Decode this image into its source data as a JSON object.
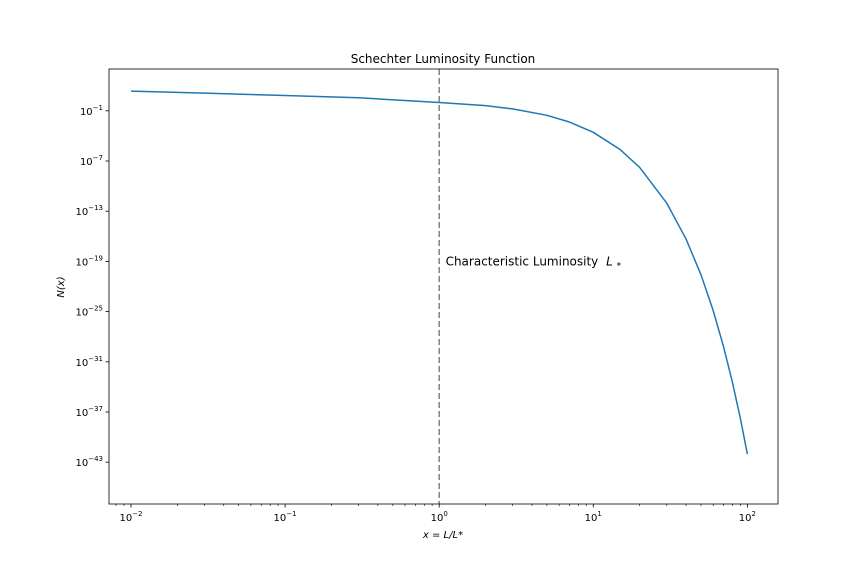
{
  "chart_data": {
    "type": "line",
    "title": "Schechter Luminosity Function",
    "xlabel": "x = L/L*",
    "ylabel": "N(x)",
    "xscale": "log",
    "yscale": "log",
    "xlim": [
      0.0072,
      158
    ],
    "ylim": [
      1e-48,
      10000.0
    ],
    "grid": false,
    "colors": {
      "line": "#1f77b4",
      "vline": "#808080"
    },
    "x_ticks": [
      {
        "base": "10",
        "exp": "−2",
        "value": 0.01
      },
      {
        "base": "10",
        "exp": "−1",
        "value": 0.1
      },
      {
        "base": "10",
        "exp": "0",
        "value": 1
      },
      {
        "base": "10",
        "exp": "1",
        "value": 10
      },
      {
        "base": "10",
        "exp": "2",
        "value": 100
      }
    ],
    "y_ticks": [
      {
        "base": "10",
        "exp": "−1",
        "value": 0.1
      },
      {
        "base": "10",
        "exp": "−7",
        "value": 1e-07
      },
      {
        "base": "10",
        "exp": "−13",
        "value": 1e-13
      },
      {
        "base": "10",
        "exp": "−19",
        "value": 1e-19
      },
      {
        "base": "10",
        "exp": "−25",
        "value": 1e-25
      },
      {
        "base": "10",
        "exp": "−31",
        "value": 1e-31
      },
      {
        "base": "10",
        "exp": "−37",
        "value": 1e-37
      },
      {
        "base": "10",
        "exp": "−43",
        "value": 1e-43
      }
    ],
    "series": [
      {
        "x": [
          0.01,
          0.03,
          0.1,
          0.3,
          1,
          2,
          3,
          5,
          7,
          10,
          15,
          20,
          30,
          40,
          50,
          60,
          70,
          80,
          90,
          100
        ],
        "y": [
          22.5,
          12.9,
          6.9,
          3.6,
          1.0,
          0.42,
          0.17,
          0.029,
          0.0046,
          0.00027,
          2.2e-06,
          1.7e-08,
          9e-13,
          4.7e-17,
          2.5e-21,
          1.3e-25,
          6.6e-30,
          3.4e-34,
          1.8e-38,
          9e-43
        ]
      }
    ],
    "vline": {
      "x": 1,
      "style": "dashed"
    },
    "annotation": {
      "text": "Characteristic Luminosity",
      "symbol": "L",
      "subscript": "*",
      "x": 1.1,
      "y": 1e-19
    }
  }
}
